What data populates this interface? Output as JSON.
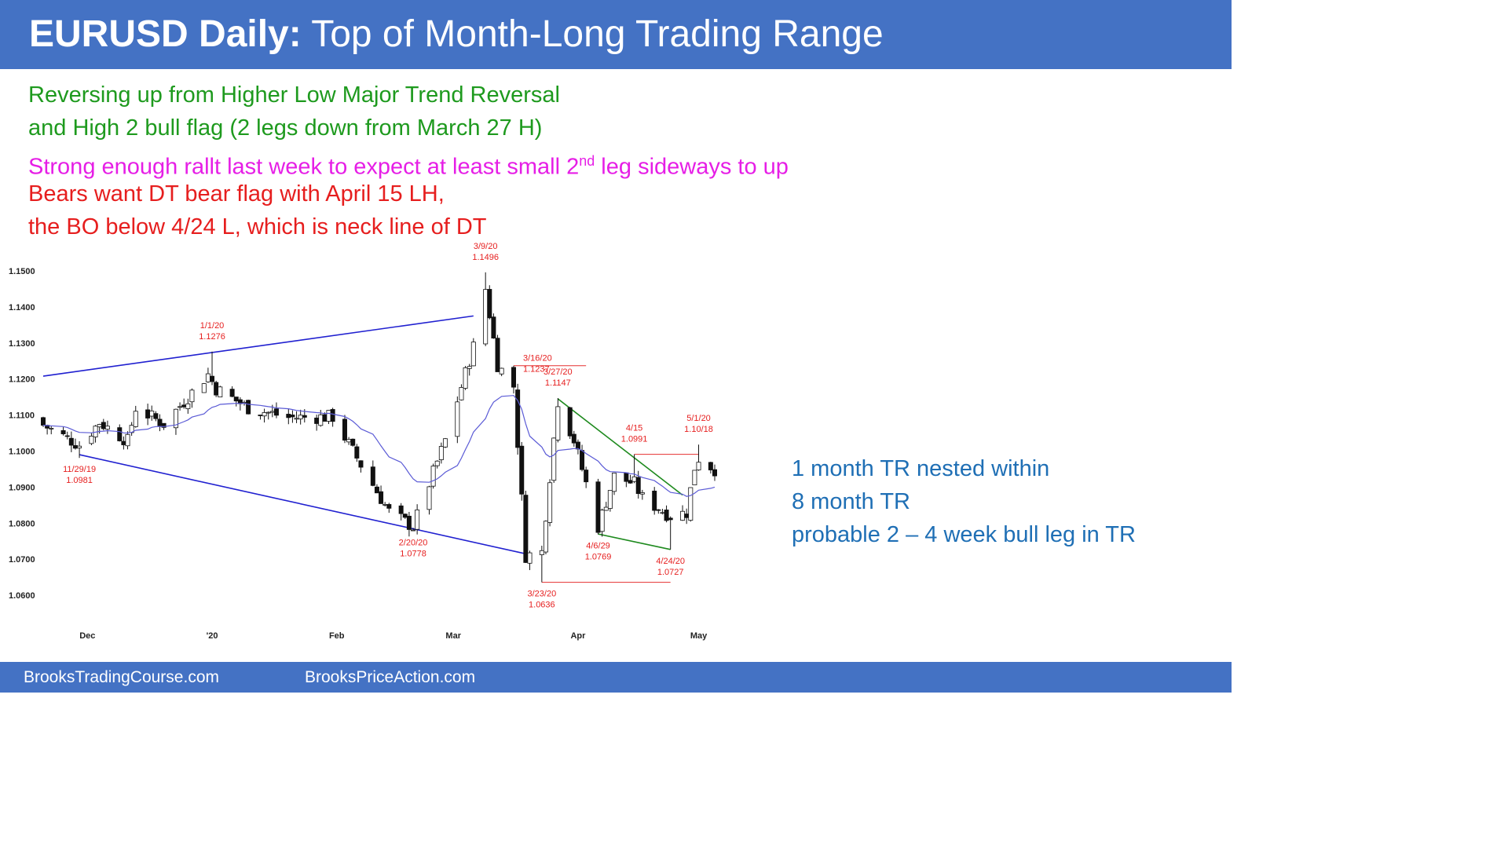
{
  "header": {
    "title_bold": "EURUSD Daily:",
    "title_rest": " Top of Month-Long Trading Range"
  },
  "notes": {
    "line1": "Reversing up from Higher Low Major Trend Reversal",
    "line2": "and High 2 bull flag (2 legs down from March 27 H)",
    "line3_pre": "Strong enough rallt last week to expect at least small 2",
    "line3_sup": "nd",
    "line3_post": " leg sideways to up",
    "line4": "Bears want DT bear flag with April 15 LH,",
    "line5": "the BO below 4/24 L, which is neck line of DT"
  },
  "side_notes": {
    "line1": "1 month TR nested within",
    "line2": "8 month TR",
    "line3": "probable 2 – 4 week bull leg in TR"
  },
  "footer": {
    "left": "BrooksTradingCourse.com",
    "right": "BrooksPriceAction.com"
  },
  "colors": {
    "header_bg": "#4472c4",
    "bull_candle": "#ffffff",
    "bear_candle": "#111111",
    "ema": "#5b5bd6",
    "channel": "#2020d0",
    "wedge": "#1e8a1e",
    "level": "#e63030",
    "annotation": "#e62020"
  },
  "chart_data": {
    "type": "candlestick",
    "instrument": "EURUSD",
    "timeframe": "Daily",
    "y_ticks": [
      "1.1500",
      "1.1400",
      "1.1300",
      "1.1200",
      "1.1100",
      "1.1000",
      "1.0900",
      "1.0800",
      "1.0700",
      "1.0600"
    ],
    "y_tick_values": [
      1.15,
      1.14,
      1.13,
      1.12,
      1.11,
      1.1,
      1.09,
      1.08,
      1.07,
      1.06
    ],
    "x_ticks": [
      "Dec",
      "'20",
      "Feb",
      "Mar",
      "Apr",
      "May"
    ],
    "x_tick_dates": [
      "2019-12-01",
      "2020-01-01",
      "2020-02-01",
      "2020-03-01",
      "2020-04-01",
      "2020-05-01"
    ],
    "ylim": [
      1.055,
      1.152
    ],
    "date_range": [
      "2019-11-20",
      "2020-05-05"
    ],
    "annotations": [
      {
        "date_label": "3/9/20",
        "price_label": "1.1496",
        "date": "2020-03-09",
        "price": 1.1496,
        "position": "above"
      },
      {
        "date_label": "1/1/20",
        "price_label": "1.1276",
        "date": "2020-01-01",
        "price": 1.1276,
        "position": "above"
      },
      {
        "date_label": "3/16/20",
        "price_label": "1.1237",
        "date": "2020-03-16",
        "price": 1.1237,
        "position": "right"
      },
      {
        "date_label": "3/27/20",
        "price_label": "1.1147",
        "date": "2020-03-27",
        "price": 1.1147,
        "position": "above"
      },
      {
        "date_label": "4/15",
        "price_label": "1.0991",
        "date": "2020-04-15",
        "price": 1.0991,
        "position": "above"
      },
      {
        "date_label": "5/1/20",
        "price_label": "1.10/18",
        "date": "2020-05-01",
        "price": 1.1018,
        "position": "above"
      },
      {
        "date_label": "11/29/19",
        "price_label": "1.0981",
        "date": "2019-11-29",
        "price": 1.0981,
        "position": "below"
      },
      {
        "date_label": "2/20/20",
        "price_label": "1.0778",
        "date": "2020-02-20",
        "price": 1.0778,
        "position": "below"
      },
      {
        "date_label": "4/6/29",
        "price_label": "1.0769",
        "date": "2020-04-06",
        "price": 1.0769,
        "position": "below"
      },
      {
        "date_label": "4/24/20",
        "price_label": "1.0727",
        "date": "2020-04-24",
        "price": 1.0727,
        "position": "below"
      },
      {
        "date_label": "3/23/20",
        "price_label": "1.0636",
        "date": "2020-03-23",
        "price": 1.0636,
        "position": "below"
      }
    ],
    "trendlines": [
      {
        "name": "upper channel",
        "from": [
          "2019-11-20",
          1.1208
        ],
        "to": [
          "2020-03-06",
          1.1375
        ]
      },
      {
        "name": "lower channel",
        "from": [
          "2019-11-29",
          1.099
        ],
        "to": [
          "2020-03-19",
          1.0715
        ]
      },
      {
        "name": "wedge top",
        "from": [
          "2020-03-27",
          1.1145
        ],
        "to": [
          "2020-04-27",
          1.0878
        ]
      },
      {
        "name": "wedge bottom",
        "from": [
          "2020-04-06",
          1.077
        ],
        "to": [
          "2020-04-24",
          1.0727
        ]
      }
    ],
    "levels": [
      {
        "name": "3/16 high",
        "price": 1.1237,
        "from": "2020-03-16",
        "to": "2020-04-03"
      },
      {
        "name": "4/15 high",
        "price": 1.0991,
        "from": "2020-04-15",
        "to": "2020-05-01"
      },
      {
        "name": "3/23 low",
        "price": 1.0636,
        "from": "2020-03-23",
        "to": "2020-04-24"
      }
    ],
    "keypoints": [
      {
        "date": "2019-11-20",
        "close": 1.1072
      },
      {
        "date": "2019-11-29",
        "close": 1.1017
      },
      {
        "date": "2019-12-04",
        "close": 1.108
      },
      {
        "date": "2019-12-11",
        "close": 1.1028
      },
      {
        "date": "2019-12-13",
        "close": 1.112
      },
      {
        "date": "2019-12-20",
        "close": 1.1075
      },
      {
        "date": "2019-12-31",
        "close": 1.1213
      },
      {
        "date": "2020-01-02",
        "close": 1.1173
      },
      {
        "date": "2020-01-10",
        "close": 1.112
      },
      {
        "date": "2020-01-20",
        "close": 1.1093
      },
      {
        "date": "2020-01-31",
        "close": 1.1095
      },
      {
        "date": "2020-02-07",
        "close": 1.0962
      },
      {
        "date": "2020-02-14",
        "close": 1.0832
      },
      {
        "date": "2020-02-20",
        "close": 1.079
      },
      {
        "date": "2020-02-28",
        "close": 1.103
      },
      {
        "date": "2020-03-06",
        "close": 1.129
      },
      {
        "date": "2020-03-09",
        "close": 1.145
      },
      {
        "date": "2020-03-12",
        "close": 1.124
      },
      {
        "date": "2020-03-16",
        "close": 1.118
      },
      {
        "date": "2020-03-19",
        "close": 1.071
      },
      {
        "date": "2020-03-23",
        "close": 1.072
      },
      {
        "date": "2020-03-27",
        "close": 1.114
      },
      {
        "date": "2020-03-31",
        "close": 1.103
      },
      {
        "date": "2020-04-06",
        "close": 1.079
      },
      {
        "date": "2020-04-10",
        "close": 1.093
      },
      {
        "date": "2020-04-15",
        "close": 1.091
      },
      {
        "date": "2020-04-17",
        "close": 1.087
      },
      {
        "date": "2020-04-24",
        "close": 1.082
      },
      {
        "date": "2020-04-28",
        "close": 1.083
      },
      {
        "date": "2020-04-30",
        "close": 1.0955
      },
      {
        "date": "2020-05-01",
        "close": 1.098
      },
      {
        "date": "2020-05-05",
        "close": 1.095
      }
    ]
  }
}
